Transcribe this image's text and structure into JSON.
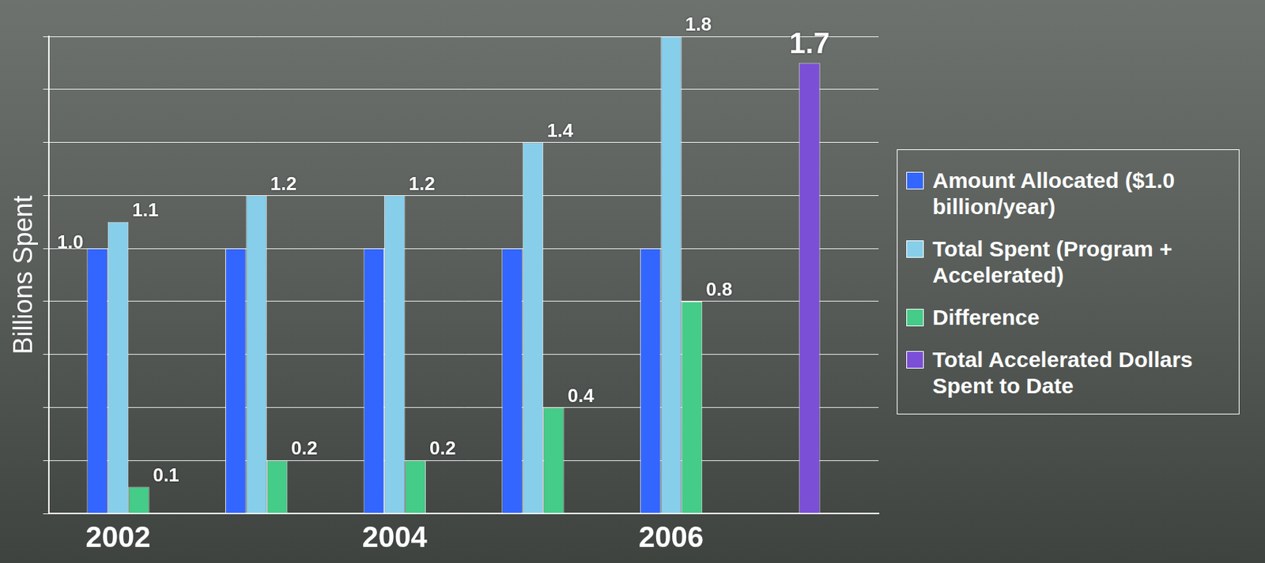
{
  "chart_data": {
    "type": "bar",
    "y_label": "Billions Spent",
    "categories": [
      "2002",
      null,
      "2004",
      null,
      "2006",
      null
    ],
    "series": [
      {
        "name": "Amount Allocated ($1.0 billion/year)",
        "color": "#3366ff",
        "values": [
          1.0,
          1.0,
          1.0,
          1.0,
          1.0,
          null
        ],
        "value_labels": [
          "1.0",
          null,
          null,
          null,
          null,
          null
        ]
      },
      {
        "name": "Total Spent (Program + Accelerated)",
        "color": "#87ceeb",
        "values": [
          1.1,
          1.2,
          1.2,
          1.4,
          1.8,
          null
        ]
      },
      {
        "name": "Difference",
        "color": "#44cc88",
        "values": [
          0.1,
          0.2,
          0.2,
          0.4,
          0.8,
          null
        ]
      },
      {
        "name": "Total Accelerated Dollars Spent to Date",
        "color": "#7b4fd6",
        "values": [
          null,
          null,
          null,
          null,
          null,
          1.7
        ]
      }
    ],
    "ylim": [
      0,
      1.8
    ],
    "yticks": [
      0,
      0.2,
      0.4,
      0.6,
      0.8,
      1.0,
      1.2,
      1.4,
      1.6,
      1.8
    ],
    "grid": true,
    "legend": "right",
    "data_labels": true,
    "tick_labels": "x"
  }
}
